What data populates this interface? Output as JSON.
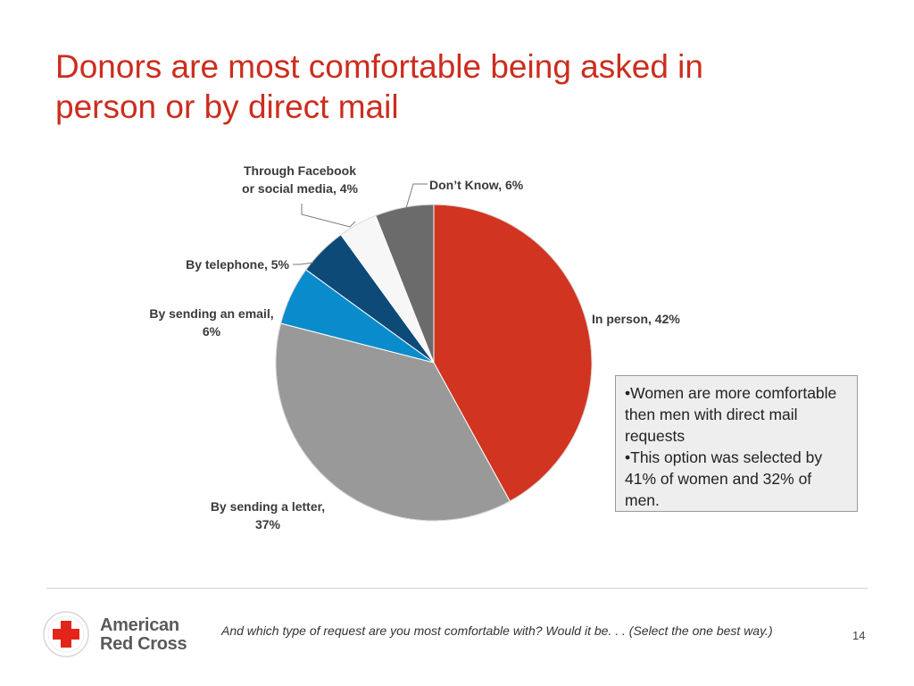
{
  "slide": {
    "title_line1": "Donors are most comfortable being asked in",
    "title_line2": "person or by direct mail",
    "page_number": "14"
  },
  "chart_data": {
    "type": "pie",
    "start_angle_deg": 0,
    "direction": "clockwise",
    "slices": [
      {
        "name": "In person",
        "value": 42,
        "color": "#d13420",
        "label_lines": [
          "In person, 42%"
        ],
        "label_side": "right"
      },
      {
        "name": "By sending a letter",
        "value": 37,
        "color": "#999999",
        "label_lines": [
          "By sending a letter,",
          "37%"
        ],
        "label_side": "bottom"
      },
      {
        "name": "By sending an email",
        "value": 6,
        "color": "#0a8ccc",
        "label_lines": [
          "By sending an email,",
          "6%"
        ],
        "label_side": "left"
      },
      {
        "name": "By telephone",
        "value": 5,
        "color": "#0e4a78",
        "label_lines": [
          "By telephone, 5%"
        ],
        "label_side": "left"
      },
      {
        "name": "Through Facebook or social media",
        "value": 4,
        "color": "#f7f7f7",
        "label_lines": [
          "Through Facebook",
          "or social media, 4%"
        ],
        "label_side": "top"
      },
      {
        "name": "Don’t Know",
        "value": 6,
        "color": "#6b6b6b",
        "label_lines": [
          "Don’t Know, 6%"
        ],
        "label_side": "top"
      }
    ]
  },
  "callout": {
    "bullet1": "•Women are more comfortable then men with direct mail requests",
    "bullet2": "•This option was selected by 41% of women and 32% of men."
  },
  "footer": {
    "logo_line1": "American",
    "logo_line2": "Red Cross",
    "question": "And which type of request are you most comfortable with?  Would it be. . . (Select the one best way.)"
  },
  "colors": {
    "title": "#cc2d1e",
    "brand_red": "#e3241b"
  }
}
